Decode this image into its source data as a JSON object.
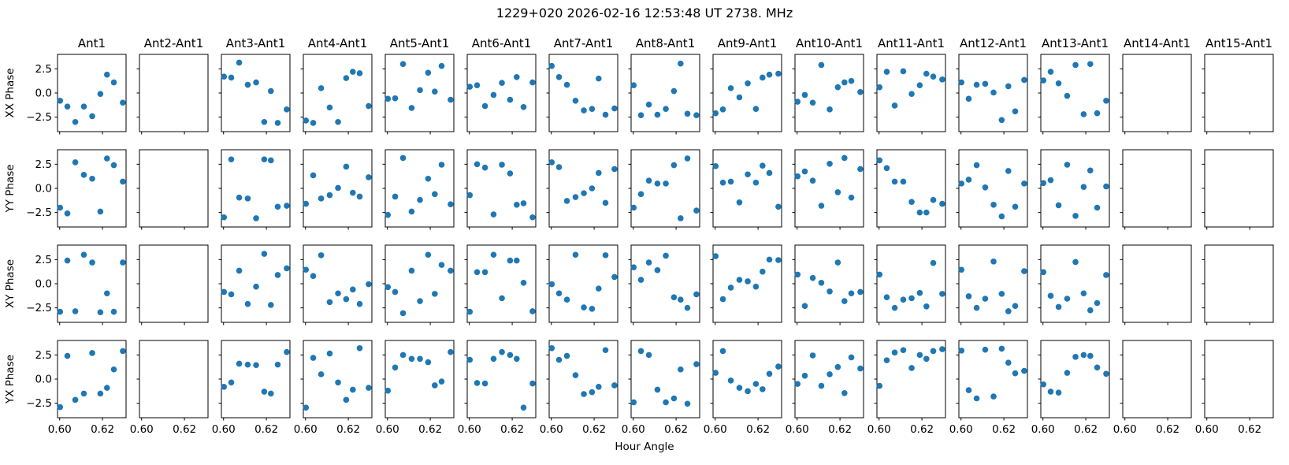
{
  "colors": {
    "marker": "#1f77b4",
    "axis": "#000000",
    "background": "#ffffff",
    "text": "#000000"
  },
  "chart_data": {
    "type": "scatter",
    "title": "1229+020  2026-02-16 12:53:48 UT  2738. MHz",
    "xlabel": "Hour Angle",
    "grid": false,
    "xlim": [
      0.599,
      0.631
    ],
    "ylim": [
      -4.0,
      4.0
    ],
    "xticks": [
      0.6,
      0.62
    ],
    "yticks": [
      2.5,
      0.0,
      -2.5
    ],
    "xticklabels": [
      "0.60",
      "0.62"
    ],
    "yticklabels": [
      "2.5",
      "0.0",
      "−2.5"
    ],
    "columns": [
      "Ant1",
      "Ant2-Ant1",
      "Ant3-Ant1",
      "Ant4-Ant1",
      "Ant5-Ant1",
      "Ant6-Ant1",
      "Ant7-Ant1",
      "Ant8-Ant1",
      "Ant9-Ant1",
      "Ant10-Ant1",
      "Ant11-Ant1",
      "Ant12-Ant1",
      "Ant13-Ant1",
      "Ant14-Ant1",
      "Ant15-Ant1"
    ],
    "x": [
      0.6002,
      0.6036,
      0.6073,
      0.6113,
      0.6152,
      0.619,
      0.6221,
      0.6253,
      0.6295
    ],
    "rows": [
      {
        "label": "XX Phase",
        "values": [
          [
            -0.8,
            -1.4,
            -3.0,
            -1.4,
            -2.4,
            -0.1,
            1.9,
            1.1,
            -1.0
          ],
          [],
          [
            1.7,
            1.6,
            3.15,
            0.85,
            1.1,
            -3.0,
            0.2,
            -3.1,
            -1.7
          ],
          [
            -2.85,
            -3.1,
            0.5,
            -1.5,
            -3.0,
            1.55,
            2.2,
            2.05,
            -1.35
          ],
          [
            -0.6,
            -0.55,
            3.0,
            -1.55,
            0.3,
            2.1,
            0.15,
            2.8,
            -0.7
          ],
          [
            0.65,
            0.8,
            -1.35,
            -0.2,
            1.05,
            -0.7,
            1.65,
            -1.45,
            1.1
          ],
          [
            2.8,
            1.65,
            0.85,
            -0.8,
            -1.8,
            -1.65,
            1.5,
            -2.25,
            -1.6
          ],
          [
            0.8,
            -2.3,
            -1.2,
            -2.25,
            -1.65,
            0.2,
            3.05,
            -2.15,
            -2.3
          ],
          [
            -2.1,
            -1.7,
            0.5,
            -0.45,
            1.0,
            -1.65,
            1.6,
            1.9,
            2.0
          ],
          [
            -0.9,
            -0.2,
            -1.0,
            2.9,
            -1.7,
            0.6,
            1.1,
            1.25,
            0.1
          ],
          [
            0.6,
            2.2,
            -1.3,
            2.25,
            -0.1,
            0.8,
            2.0,
            1.7,
            1.4
          ],
          [
            1.1,
            -0.6,
            0.85,
            0.95,
            0.05,
            -2.8,
            0.7,
            -1.9,
            1.35
          ],
          [
            1.3,
            2.2,
            1.0,
            -0.3,
            2.9,
            -2.2,
            3.0,
            -2.1,
            -0.8
          ],
          [],
          []
        ]
      },
      {
        "label": "YY Phase",
        "values": [
          [
            -2.0,
            -2.6,
            2.7,
            1.4,
            1.0,
            -2.4,
            3.1,
            2.4,
            0.7
          ],
          [],
          [
            -3.0,
            3.0,
            -0.95,
            -1.05,
            -3.1,
            3.0,
            2.9,
            -1.9,
            -1.8
          ],
          [
            -1.6,
            1.35,
            -1.05,
            -0.7,
            0.05,
            2.25,
            -0.45,
            -0.85,
            1.15
          ],
          [
            -2.75,
            -0.85,
            3.15,
            -2.4,
            -1.2,
            1.0,
            -0.6,
            2.45,
            -1.65
          ],
          [
            -0.7,
            2.5,
            2.15,
            -2.7,
            2.45,
            1.55,
            -1.7,
            -1.55,
            -3.0
          ],
          [
            2.7,
            2.2,
            -1.3,
            -0.9,
            -0.5,
            0.0,
            1.6,
            -1.5,
            2.0
          ],
          [
            -2.0,
            -0.6,
            0.8,
            0.5,
            0.5,
            2.4,
            -3.1,
            3.1,
            -2.3
          ],
          [
            2.3,
            0.6,
            0.7,
            -1.45,
            1.45,
            0.6,
            2.35,
            1.6,
            -1.9
          ],
          [
            1.25,
            1.75,
            0.8,
            -1.8,
            2.55,
            -0.4,
            3.15,
            -0.95,
            2.0
          ],
          [
            2.9,
            2.1,
            0.7,
            0.7,
            -1.4,
            -2.5,
            -2.5,
            -1.2,
            -1.6
          ],
          [
            0.5,
            0.9,
            2.4,
            0.1,
            -1.7,
            -2.9,
            1.8,
            -1.9,
            0.5
          ],
          [
            0.55,
            0.85,
            -1.75,
            2.45,
            -2.85,
            0.15,
            1.85,
            -2.0,
            0.2
          ],
          [],
          []
        ]
      },
      {
        "label": "XY Phase",
        "values": [
          [
            -2.9,
            2.4,
            -2.85,
            3.0,
            2.2,
            -2.95,
            -1.0,
            -2.9,
            2.2
          ],
          [],
          [
            -0.85,
            -1.1,
            1.35,
            -2.1,
            -0.3,
            3.1,
            -2.2,
            0.9,
            1.6
          ],
          [
            1.45,
            0.8,
            2.95,
            -1.9,
            -1.0,
            -1.6,
            -0.6,
            -2.1,
            -0.05
          ],
          [
            -0.35,
            -0.85,
            -3.05,
            1.35,
            -1.8,
            3.0,
            -1.05,
            1.95,
            1.35
          ],
          [
            -2.9,
            1.2,
            1.2,
            3.0,
            -1.5,
            2.4,
            2.4,
            0.1,
            -2.85
          ],
          [
            -0.05,
            -1.0,
            -1.65,
            3.0,
            -2.45,
            -2.6,
            -0.5,
            2.95,
            0.7
          ],
          [
            1.7,
            0.4,
            2.2,
            1.4,
            2.9,
            -1.4,
            -1.65,
            -2.5,
            -1.1
          ],
          [
            2.85,
            -1.6,
            -0.4,
            0.4,
            0.25,
            -0.3,
            1.25,
            2.5,
            2.45
          ],
          [
            0.95,
            -2.3,
            0.6,
            0.1,
            -0.8,
            2.2,
            -1.8,
            -1.0,
            -0.85
          ],
          [
            0.95,
            -1.4,
            -2.5,
            -1.65,
            -1.5,
            -0.95,
            -2.35,
            2.15,
            -1.05
          ],
          [
            1.45,
            -1.3,
            -2.5,
            -1.55,
            2.3,
            -1.05,
            -2.85,
            -2.3,
            1.3
          ],
          [
            1.2,
            -1.25,
            -2.4,
            -1.55,
            2.25,
            -1.0,
            -2.75,
            -2.0,
            0.9
          ],
          [],
          []
        ]
      },
      {
        "label": "YX Phase",
        "values": [
          [
            -2.9,
            2.4,
            -2.15,
            -1.5,
            2.7,
            -1.5,
            -0.9,
            1.0,
            2.9
          ],
          [],
          [
            -0.8,
            -0.35,
            1.6,
            1.5,
            1.45,
            -1.3,
            -1.5,
            1.5,
            2.8
          ],
          [
            -2.95,
            2.2,
            0.5,
            2.65,
            -0.35,
            -2.15,
            -1.1,
            3.2,
            -0.9
          ],
          [
            -1.2,
            1.2,
            2.5,
            2.1,
            2.1,
            1.75,
            -0.65,
            -0.25,
            2.8
          ],
          [
            2.0,
            -0.4,
            -0.45,
            2.1,
            2.8,
            2.5,
            2.1,
            -2.95,
            -0.45
          ],
          [
            3.2,
            2.0,
            2.4,
            0.4,
            -1.55,
            -1.35,
            -0.8,
            3.0,
            -0.65
          ],
          [
            -2.4,
            2.9,
            2.5,
            -1.1,
            -2.4,
            -2.0,
            1.0,
            -2.55,
            1.55
          ],
          [
            0.65,
            2.9,
            -0.15,
            -0.9,
            -1.25,
            -0.5,
            -1.05,
            0.55,
            1.3
          ],
          [
            -0.5,
            0.35,
            2.45,
            -0.7,
            0.5,
            1.25,
            -1.45,
            2.25,
            1.1
          ],
          [
            -0.7,
            1.95,
            2.75,
            3.0,
            1.15,
            2.5,
            2.1,
            2.9,
            3.1
          ],
          [
            2.95,
            -1.15,
            -2.0,
            3.05,
            -1.8,
            3.15,
            1.7,
            0.6,
            0.85
          ],
          [
            -0.55,
            -1.3,
            -1.4,
            0.65,
            2.3,
            2.5,
            2.4,
            1.2,
            0.55
          ],
          [],
          []
        ]
      }
    ]
  }
}
